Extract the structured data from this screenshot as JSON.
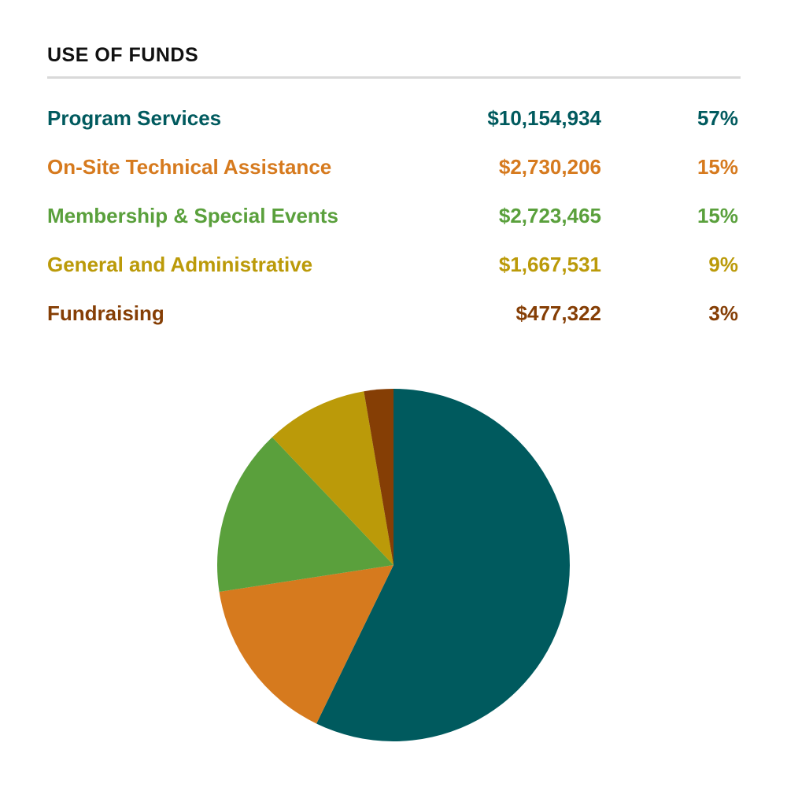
{
  "header": {
    "title": "USE OF FUNDS"
  },
  "legend": {
    "rows": [
      {
        "label": "Program Services",
        "amount": "$10,154,934",
        "percent": "57%",
        "color": "#005a5e"
      },
      {
        "label": "On-Site Technical Assistance",
        "amount": "$2,730,206",
        "percent": "15%",
        "color": "#d67a1e"
      },
      {
        "label": "Membership & Special Events",
        "amount": "$2,723,465",
        "percent": "15%",
        "color": "#5aa03c"
      },
      {
        "label": "General and Administrative",
        "amount": "$1,667,531",
        "percent": "9%",
        "color": "#bb9a09"
      },
      {
        "label": "Fundraising",
        "amount": "$477,322",
        "percent": "3%",
        "color": "#853e05"
      }
    ]
  },
  "chart_data": {
    "type": "pie",
    "title": "USE OF FUNDS",
    "categories": [
      "Program Services",
      "On-Site Technical Assistance",
      "Membership & Special Events",
      "General and Administrative",
      "Fundraising"
    ],
    "values": [
      10154934,
      2730206,
      2723465,
      1667531,
      477322
    ],
    "percents": [
      57,
      15,
      15,
      9,
      3
    ],
    "colors": [
      "#005a5e",
      "#d67a1e",
      "#5aa03c",
      "#bb9a09",
      "#853e05"
    ],
    "start_angle_deg": 0,
    "direction": "clockwise"
  }
}
